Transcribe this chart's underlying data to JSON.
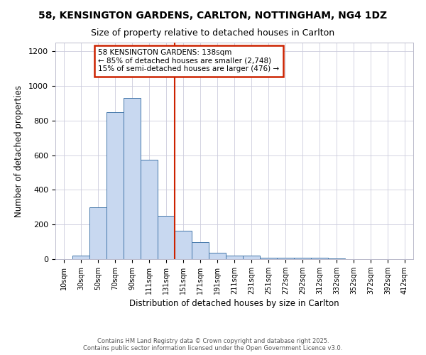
{
  "title_line1": "58, KENSINGTON GARDENS, CARLTON, NOTTINGHAM, NG4 1DZ",
  "title_line2": "Size of property relative to detached houses in Carlton",
  "xlabel": "Distribution of detached houses by size in Carlton",
  "ylabel": "Number of detached properties",
  "categories": [
    "10sqm",
    "30sqm",
    "50sqm",
    "70sqm",
    "90sqm",
    "111sqm",
    "131sqm",
    "151sqm",
    "171sqm",
    "191sqm",
    "211sqm",
    "231sqm",
    "251sqm",
    "272sqm",
    "292sqm",
    "312sqm",
    "332sqm",
    "352sqm",
    "372sqm",
    "392sqm",
    "412sqm"
  ],
  "values": [
    0,
    20,
    300,
    850,
    930,
    575,
    248,
    165,
    100,
    37,
    20,
    20,
    10,
    7,
    7,
    8,
    3,
    0,
    0,
    0,
    0
  ],
  "bar_color": "#c8d8f0",
  "bar_edge_color": "#4477aa",
  "vline_color": "#cc2200",
  "vline_x_index": 6,
  "annotation_title": "58 KENSINGTON GARDENS: 138sqm",
  "annotation_line2": "← 85% of detached houses are smaller (2,748)",
  "annotation_line3": "15% of semi-detached houses are larger (476) →",
  "annotation_box_color": "#ffffff",
  "annotation_box_edge_color": "#cc2200",
  "background_color": "#ffffff",
  "plot_bg_color": "#ffffff",
  "ylim": [
    0,
    1250
  ],
  "yticks": [
    0,
    200,
    400,
    600,
    800,
    1000,
    1200
  ],
  "footer_line1": "Contains HM Land Registry data © Crown copyright and database right 2025.",
  "footer_line2": "Contains public sector information licensed under the Open Government Licence v3.0."
}
